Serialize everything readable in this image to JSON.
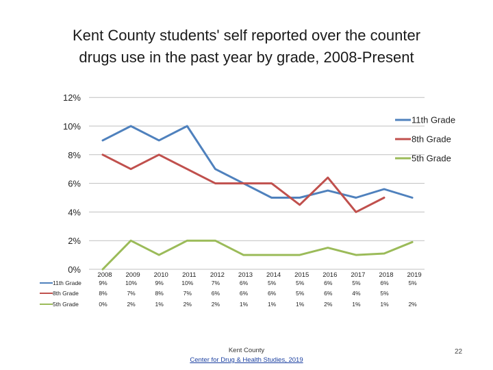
{
  "title_line1": "Kent County students' self reported over the counter",
  "title_line2": "drugs use in the past year by grade, 2008-Present",
  "footer": {
    "line1": "Kent County",
    "line2": "Center for Drug & Health Studies, 2019"
  },
  "page_number": "22",
  "chart_data": {
    "type": "line",
    "title": "Kent County students' self reported over the counter drugs use in the past year by grade, 2008-Present",
    "x": [
      "2008",
      "2009",
      "2010",
      "2011",
      "2012",
      "2013",
      "2014",
      "2015",
      "2016",
      "2017",
      "2018",
      "2019"
    ],
    "ylim": [
      0,
      12
    ],
    "yticks": [
      0,
      2,
      4,
      6,
      8,
      10,
      12
    ],
    "ytick_labels": [
      "0%",
      "2%",
      "4%",
      "6%",
      "8%",
      "10%",
      "12%"
    ],
    "grid": true,
    "legend_position": "right",
    "series": [
      {
        "name": "11th Grade",
        "color": "#4f81bd",
        "values": [
          9,
          10,
          9,
          10,
          7,
          6,
          5,
          5,
          5.5,
          5,
          5.6,
          5
        ],
        "table_labels": [
          "9%",
          "10%",
          "9%",
          "10%",
          "7%",
          "6%",
          "5%",
          "5%",
          "6%",
          "5%",
          "6%",
          "5%"
        ]
      },
      {
        "name": "8th Grade",
        "color": "#c0504d",
        "values": [
          8,
          7,
          8,
          7,
          6,
          6,
          6,
          4.5,
          6.4,
          4,
          5,
          null
        ],
        "table_labels": [
          "8%",
          "7%",
          "8%",
          "7%",
          "6%",
          "6%",
          "6%",
          "5%",
          "6%",
          "4%",
          "5%",
          ""
        ]
      },
      {
        "name": "5th Grade",
        "color": "#9bbb59",
        "values": [
          0,
          2,
          1,
          2,
          2,
          1,
          1,
          1,
          1.5,
          1,
          1.1,
          1.9
        ],
        "table_labels": [
          "0%",
          "2%",
          "1%",
          "2%",
          "2%",
          "1%",
          "1%",
          "1%",
          "2%",
          "1%",
          "1%",
          "2%"
        ]
      }
    ]
  }
}
